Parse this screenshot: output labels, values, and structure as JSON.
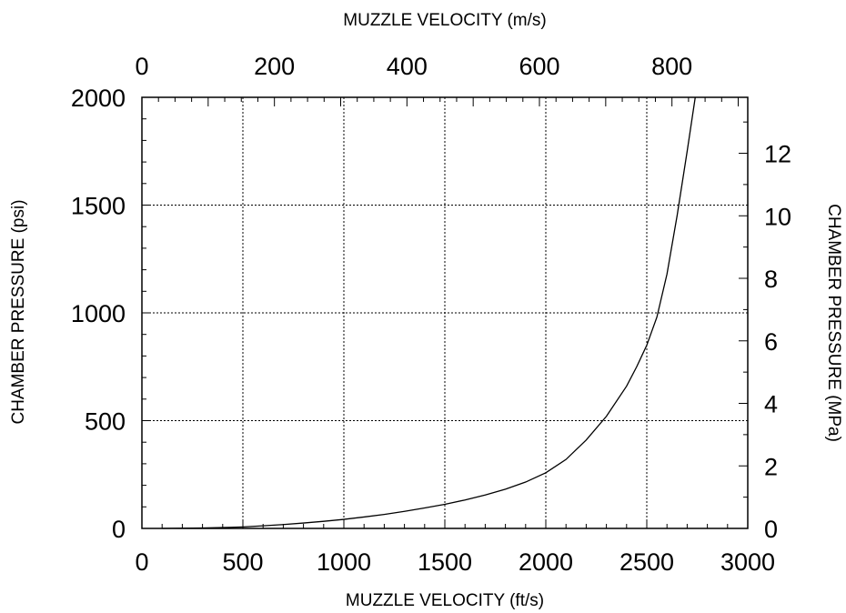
{
  "chart_data": {
    "type": "line",
    "title": "",
    "xlabel": "MUZZLE VELOCITY (ft/s)",
    "ylabel": "CHAMBER PRESSURE (psi)",
    "x2label": "MUZZLE VELOCITY (m/s)",
    "y2label": "CHAMBER PRESSURE (MPa)",
    "xlim": [
      0,
      3000
    ],
    "ylim": [
      0,
      2000
    ],
    "x2lim": [
      0,
      914.4
    ],
    "y2lim": [
      0,
      13.79
    ],
    "x_ticks": [
      "0",
      "500",
      "1000",
      "1500",
      "2000",
      "2500",
      "3000"
    ],
    "y_ticks": [
      "0",
      "500",
      "1000",
      "1500",
      "2000"
    ],
    "x2_ticks": [
      "0",
      "200",
      "400",
      "600",
      "800"
    ],
    "y2_ticks": [
      "0",
      "2",
      "4",
      "6",
      "8",
      "10",
      "12"
    ],
    "grid": true,
    "legend": "none",
    "series": [
      {
        "x": [
          100,
          200,
          300,
          400,
          500,
          600,
          700,
          800,
          900,
          1000,
          1100,
          1200,
          1300,
          1400,
          1500,
          1600,
          1700,
          1800,
          1900,
          2000,
          2100,
          2200,
          2300,
          2400,
          2450,
          2500,
          2550,
          2600,
          2650,
          2700,
          2740
        ],
        "y": [
          0,
          1,
          2,
          4,
          7,
          12,
          18,
          25,
          33,
          42,
          53,
          65,
          79,
          95,
          112,
          132,
          155,
          182,
          215,
          258,
          320,
          410,
          520,
          660,
          750,
          850,
          980,
          1180,
          1450,
          1750,
          2000
        ]
      }
    ]
  }
}
